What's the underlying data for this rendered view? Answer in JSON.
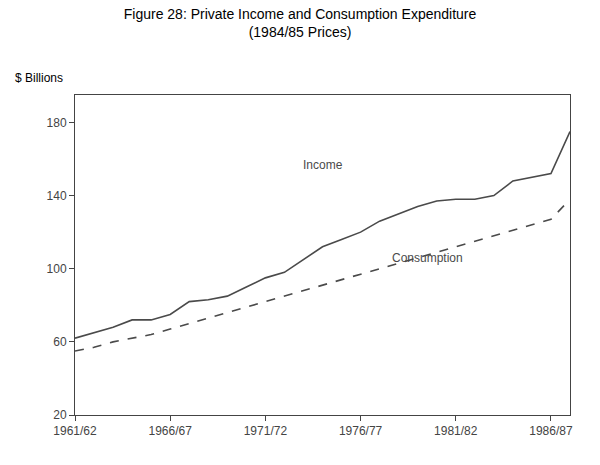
{
  "chart_data": {
    "type": "line",
    "title": "Figure 28: Private Income and Consumption Expenditure",
    "subtitle": "(1984/85 Prices)",
    "ylabel": "$ Billions",
    "categories": [
      "1961/62",
      null,
      null,
      null,
      null,
      "1966/67",
      null,
      null,
      null,
      null,
      "1971/72",
      null,
      null,
      null,
      null,
      "1976/77",
      null,
      null,
      null,
      null,
      "1981/82",
      null,
      null,
      null,
      null,
      "1986/87",
      null
    ],
    "color": "#4a4a4a",
    "series": [
      {
        "name": "Income",
        "line_style": "solid",
        "values": [
          62,
          65,
          68,
          72,
          72,
          75,
          82,
          83,
          85,
          90,
          95,
          98,
          105,
          112,
          116,
          120,
          126,
          130,
          134,
          137,
          138,
          138,
          140,
          148,
          150,
          152,
          175
        ]
      },
      {
        "name": "Consumption",
        "line_style": "dashed",
        "values": [
          55,
          57,
          60,
          62,
          64,
          67,
          70,
          73,
          76,
          79,
          82,
          85,
          88,
          91,
          94,
          97,
          100,
          103,
          106,
          109,
          112,
          115,
          118,
          121,
          124,
          127,
          138
        ]
      }
    ],
    "annotations": [
      {
        "text": "Income",
        "x": 13,
        "y": 152
      },
      {
        "text": "Consumption",
        "x": 18.5,
        "y": 101
      }
    ],
    "ylim": [
      20,
      195
    ],
    "yticks": [
      20,
      60,
      100,
      140,
      180
    ],
    "grid": false
  }
}
